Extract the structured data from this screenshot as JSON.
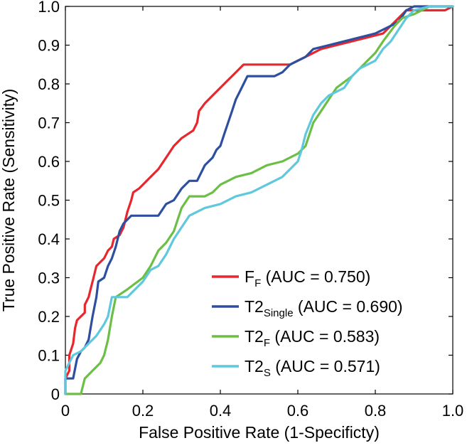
{
  "chart_data": {
    "type": "line",
    "title": "",
    "xlabel": "False Positive Rate (1-Specificty)",
    "ylabel": "True Positive Rate (Sensitivity)",
    "xlim": [
      0,
      1
    ],
    "ylim": [
      0,
      1
    ],
    "xticks": [
      "0",
      "0.2",
      "0.4",
      "0.6",
      "0.8",
      "1.0"
    ],
    "yticks": [
      "0",
      "0.1",
      "0.2",
      "0.3",
      "0.4",
      "0.5",
      "0.6",
      "0.7",
      "0.8",
      "0.9",
      "1.0"
    ],
    "grid": false,
    "legend_position": "bottom-right",
    "series": [
      {
        "name_main": "F",
        "name_sub": "F",
        "name_rest": " (AUC = 0.750)",
        "color": "#e8262d",
        "points": [
          [
            0,
            0
          ],
          [
            0,
            0.04
          ],
          [
            0.01,
            0.06
          ],
          [
            0.01,
            0.1
          ],
          [
            0.02,
            0.13
          ],
          [
            0.025,
            0.17
          ],
          [
            0.03,
            0.19
          ],
          [
            0.04,
            0.2
          ],
          [
            0.05,
            0.21
          ],
          [
            0.05,
            0.23
          ],
          [
            0.06,
            0.25
          ],
          [
            0.065,
            0.27
          ],
          [
            0.07,
            0.29
          ],
          [
            0.075,
            0.31
          ],
          [
            0.08,
            0.33
          ],
          [
            0.1,
            0.35
          ],
          [
            0.11,
            0.37
          ],
          [
            0.12,
            0.38
          ],
          [
            0.125,
            0.4
          ],
          [
            0.14,
            0.41
          ],
          [
            0.15,
            0.43
          ],
          [
            0.155,
            0.45
          ],
          [
            0.16,
            0.47
          ],
          [
            0.17,
            0.5
          ],
          [
            0.175,
            0.52
          ],
          [
            0.19,
            0.53
          ],
          [
            0.2,
            0.54
          ],
          [
            0.22,
            0.56
          ],
          [
            0.24,
            0.58
          ],
          [
            0.26,
            0.61
          ],
          [
            0.28,
            0.64
          ],
          [
            0.3,
            0.66
          ],
          [
            0.33,
            0.68
          ],
          [
            0.34,
            0.7
          ],
          [
            0.345,
            0.73
          ],
          [
            0.36,
            0.75
          ],
          [
            0.38,
            0.77
          ],
          [
            0.4,
            0.79
          ],
          [
            0.42,
            0.81
          ],
          [
            0.44,
            0.83
          ],
          [
            0.46,
            0.85
          ],
          [
            0.5,
            0.85
          ],
          [
            0.54,
            0.85
          ],
          [
            0.58,
            0.85
          ],
          [
            0.6,
            0.86
          ],
          [
            0.62,
            0.87
          ],
          [
            0.64,
            0.88
          ],
          [
            0.66,
            0.89
          ],
          [
            0.7,
            0.9
          ],
          [
            0.74,
            0.91
          ],
          [
            0.78,
            0.92
          ],
          [
            0.82,
            0.93
          ],
          [
            0.84,
            0.95
          ],
          [
            0.86,
            0.97
          ],
          [
            0.88,
            0.99
          ],
          [
            0.9,
            0.99
          ],
          [
            0.94,
            0.99
          ],
          [
            0.98,
            0.99
          ],
          [
            1,
            1
          ]
        ]
      },
      {
        "name_main": "T2",
        "name_sub": "Single",
        "name_rest": " (AUC = 0.690)",
        "color": "#2e4fa0",
        "points": [
          [
            0,
            0
          ],
          [
            0,
            0.02
          ],
          [
            0,
            0.04
          ],
          [
            0.02,
            0.04
          ],
          [
            0.03,
            0.09
          ],
          [
            0.04,
            0.11
          ],
          [
            0.05,
            0.12
          ],
          [
            0.06,
            0.14
          ],
          [
            0.07,
            0.2
          ],
          [
            0.08,
            0.25
          ],
          [
            0.085,
            0.29
          ],
          [
            0.1,
            0.3
          ],
          [
            0.11,
            0.33
          ],
          [
            0.12,
            0.35
          ],
          [
            0.13,
            0.38
          ],
          [
            0.14,
            0.42
          ],
          [
            0.15,
            0.44
          ],
          [
            0.17,
            0.46
          ],
          [
            0.2,
            0.46
          ],
          [
            0.24,
            0.46
          ],
          [
            0.26,
            0.49
          ],
          [
            0.28,
            0.5
          ],
          [
            0.3,
            0.53
          ],
          [
            0.32,
            0.55
          ],
          [
            0.34,
            0.55
          ],
          [
            0.36,
            0.59
          ],
          [
            0.38,
            0.61
          ],
          [
            0.39,
            0.63
          ],
          [
            0.4,
            0.64
          ],
          [
            0.41,
            0.67
          ],
          [
            0.42,
            0.7
          ],
          [
            0.43,
            0.73
          ],
          [
            0.44,
            0.76
          ],
          [
            0.45,
            0.78
          ],
          [
            0.46,
            0.8
          ],
          [
            0.47,
            0.82
          ],
          [
            0.5,
            0.82
          ],
          [
            0.54,
            0.82
          ],
          [
            0.56,
            0.83
          ],
          [
            0.58,
            0.85
          ],
          [
            0.6,
            0.86
          ],
          [
            0.62,
            0.87
          ],
          [
            0.64,
            0.89
          ],
          [
            0.68,
            0.9
          ],
          [
            0.72,
            0.91
          ],
          [
            0.76,
            0.92
          ],
          [
            0.8,
            0.93
          ],
          [
            0.84,
            0.95
          ],
          [
            0.86,
            0.96
          ],
          [
            0.88,
            0.99
          ],
          [
            0.9,
            1
          ],
          [
            0.94,
            1
          ],
          [
            1,
            1
          ]
        ]
      },
      {
        "name_main": "T2",
        "name_sub": "F",
        "name_rest": " (AUC = 0.583)",
        "color": "#6bbf44",
        "points": [
          [
            0,
            0
          ],
          [
            0.04,
            0
          ],
          [
            0.05,
            0.04
          ],
          [
            0.07,
            0.06
          ],
          [
            0.09,
            0.08
          ],
          [
            0.1,
            0.1
          ],
          [
            0.11,
            0.14
          ],
          [
            0.12,
            0.2
          ],
          [
            0.13,
            0.25
          ],
          [
            0.16,
            0.27
          ],
          [
            0.2,
            0.3
          ],
          [
            0.22,
            0.33
          ],
          [
            0.24,
            0.37
          ],
          [
            0.26,
            0.39
          ],
          [
            0.28,
            0.42
          ],
          [
            0.29,
            0.45
          ],
          [
            0.3,
            0.48
          ],
          [
            0.32,
            0.51
          ],
          [
            0.36,
            0.51
          ],
          [
            0.38,
            0.52
          ],
          [
            0.4,
            0.54
          ],
          [
            0.42,
            0.55
          ],
          [
            0.44,
            0.56
          ],
          [
            0.48,
            0.57
          ],
          [
            0.52,
            0.59
          ],
          [
            0.56,
            0.6
          ],
          [
            0.6,
            0.62
          ],
          [
            0.62,
            0.64
          ],
          [
            0.64,
            0.7
          ],
          [
            0.66,
            0.73
          ],
          [
            0.68,
            0.76
          ],
          [
            0.7,
            0.79
          ],
          [
            0.74,
            0.82
          ],
          [
            0.78,
            0.86
          ],
          [
            0.8,
            0.88
          ],
          [
            0.82,
            0.91
          ],
          [
            0.85,
            0.95
          ],
          [
            0.87,
            0.97
          ],
          [
            0.9,
            0.98
          ],
          [
            0.94,
            1
          ],
          [
            1,
            1
          ]
        ]
      },
      {
        "name_main": "T2",
        "name_sub": "S",
        "name_rest": " (AUC = 0.571)",
        "color": "#5fc8dc",
        "points": [
          [
            0,
            0
          ],
          [
            0,
            0.06
          ],
          [
            0.02,
            0.1
          ],
          [
            0.04,
            0.11
          ],
          [
            0.06,
            0.13
          ],
          [
            0.08,
            0.15
          ],
          [
            0.1,
            0.18
          ],
          [
            0.11,
            0.2
          ],
          [
            0.12,
            0.25
          ],
          [
            0.16,
            0.25
          ],
          [
            0.18,
            0.27
          ],
          [
            0.2,
            0.29
          ],
          [
            0.22,
            0.32
          ],
          [
            0.24,
            0.33
          ],
          [
            0.26,
            0.36
          ],
          [
            0.28,
            0.4
          ],
          [
            0.3,
            0.43
          ],
          [
            0.32,
            0.46
          ],
          [
            0.36,
            0.48
          ],
          [
            0.4,
            0.49
          ],
          [
            0.44,
            0.51
          ],
          [
            0.48,
            0.52
          ],
          [
            0.52,
            0.54
          ],
          [
            0.56,
            0.56
          ],
          [
            0.58,
            0.58
          ],
          [
            0.6,
            0.6
          ],
          [
            0.61,
            0.63
          ],
          [
            0.62,
            0.67
          ],
          [
            0.64,
            0.72
          ],
          [
            0.66,
            0.75
          ],
          [
            0.68,
            0.77
          ],
          [
            0.7,
            0.78
          ],
          [
            0.72,
            0.79
          ],
          [
            0.74,
            0.82
          ],
          [
            0.76,
            0.84
          ],
          [
            0.8,
            0.86
          ],
          [
            0.82,
            0.89
          ],
          [
            0.84,
            0.91
          ],
          [
            0.86,
            0.94
          ],
          [
            0.88,
            0.97
          ],
          [
            0.9,
            0.99
          ],
          [
            0.94,
            1
          ],
          [
            1,
            1
          ]
        ]
      }
    ]
  }
}
